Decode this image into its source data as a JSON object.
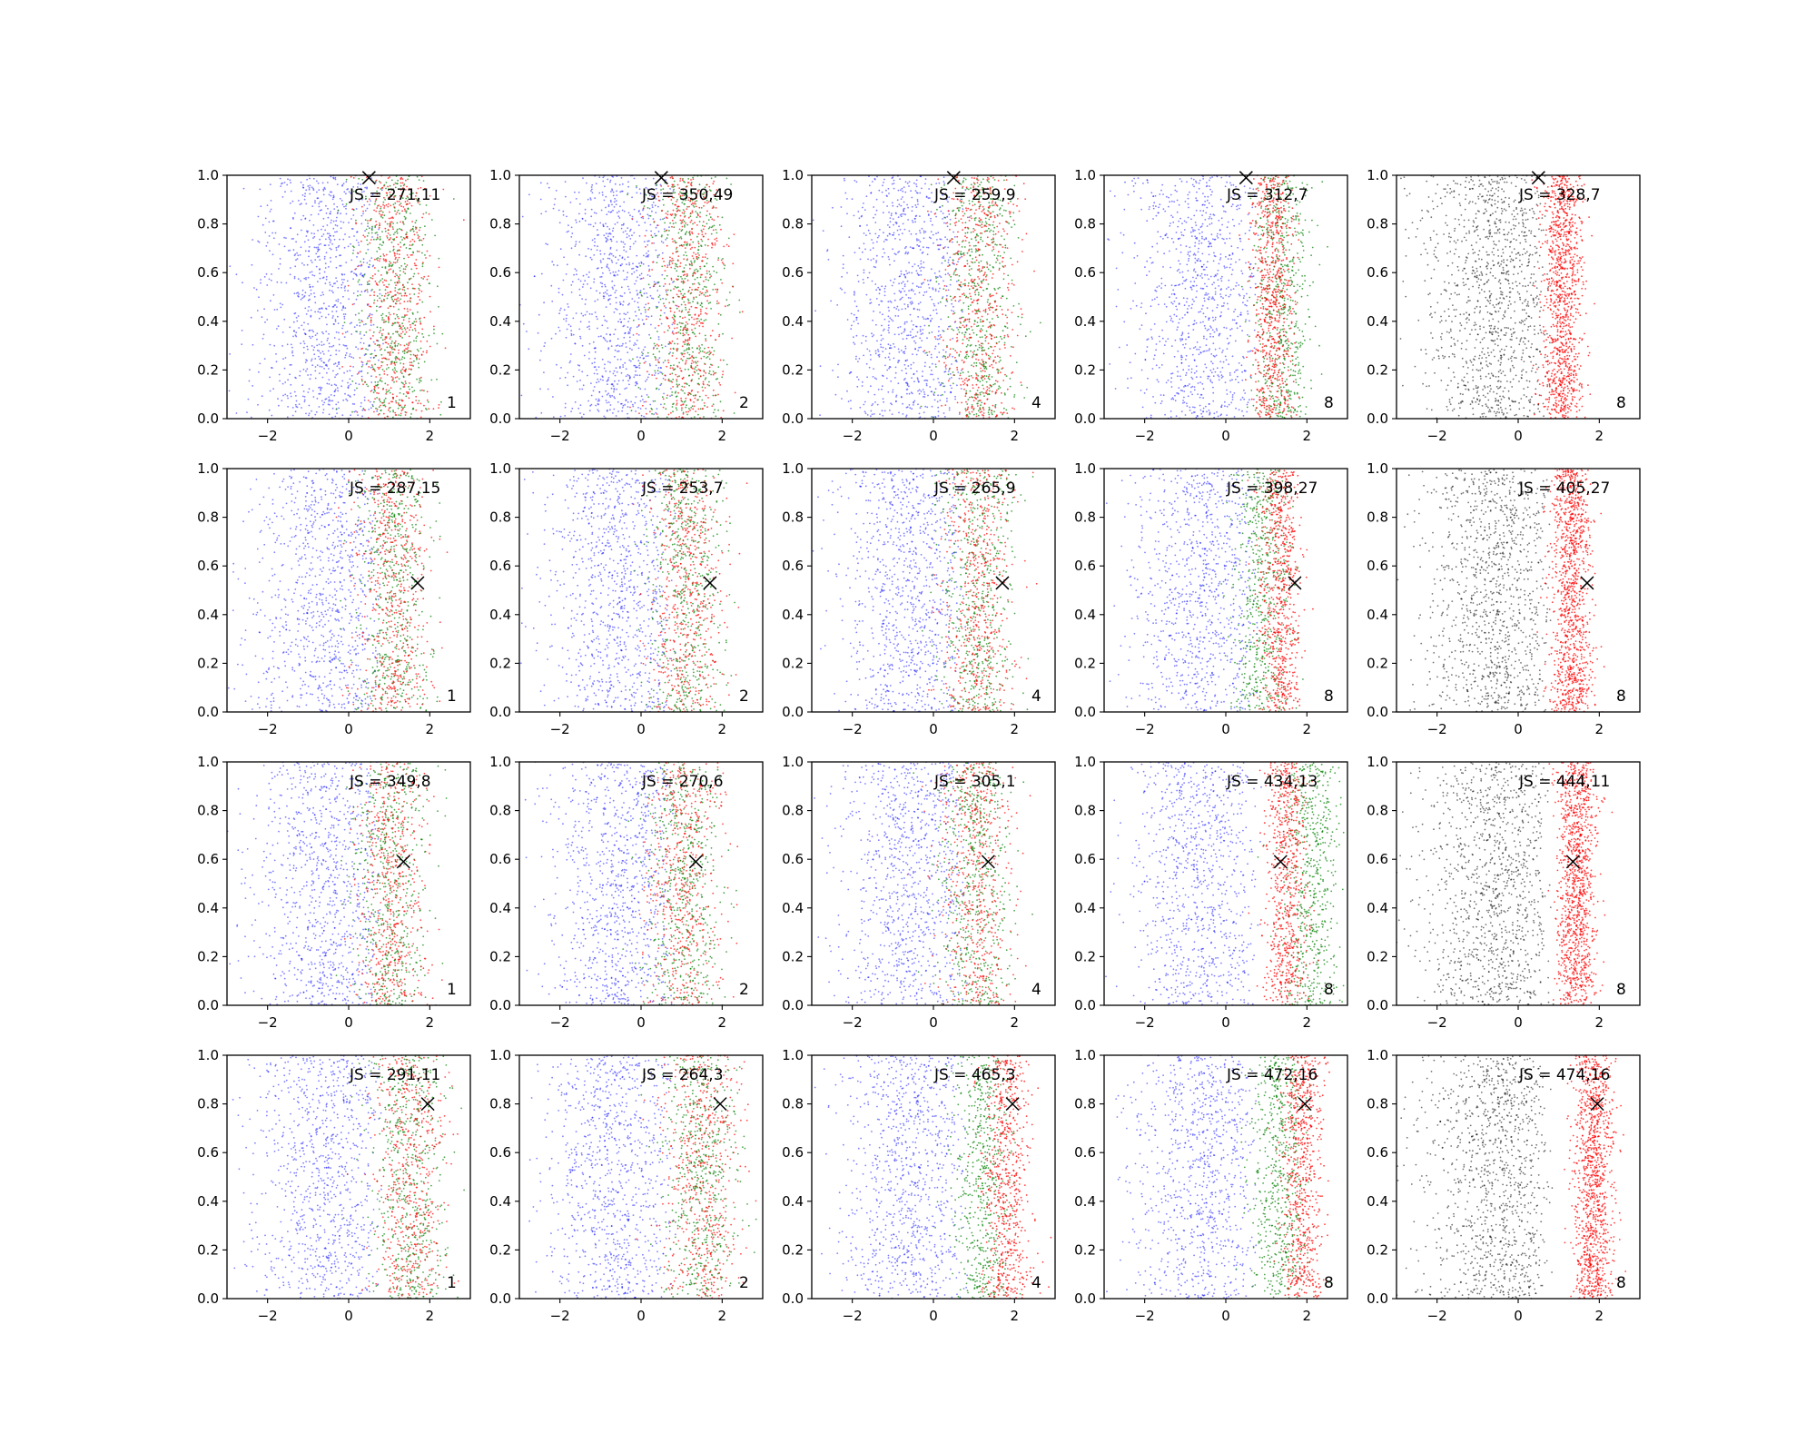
{
  "chart_data": {
    "type": "scatter",
    "layout": {
      "rows": 4,
      "cols": 5
    },
    "xlim": [
      -3,
      3
    ],
    "ylim": [
      0,
      1
    ],
    "xticks": [
      -2,
      0,
      2
    ],
    "yticks": [
      0.0,
      0.2,
      0.4,
      0.6,
      0.8,
      1.0
    ],
    "xtick_labels": [
      "−2",
      "0",
      "2"
    ],
    "ytick_labels": [
      "0.0",
      "0.2",
      "0.4",
      "0.6",
      "0.8",
      "1.0"
    ],
    "grid": false,
    "colors": {
      "left_cloud": "#0000ff",
      "right_a": "#ff0000",
      "right_b": "#008000",
      "fifth_col_left": "#000000",
      "marker": "#000000"
    },
    "rows": [
      {
        "marker": {
          "x": 0.5,
          "y": 0.99
        },
        "panels": [
          {
            "js_label": "JS = 271,11",
            "k": "1"
          },
          {
            "js_label": "JS = 350,49",
            "k": "2"
          },
          {
            "js_label": "JS = 259,9",
            "k": "4"
          },
          {
            "js_label": "JS = 312,7",
            "k": "8"
          },
          {
            "js_label": "JS = 328,7",
            "k": "8"
          }
        ]
      },
      {
        "marker": {
          "x": 1.7,
          "y": 0.53
        },
        "panels": [
          {
            "js_label": "JS = 287,15",
            "k": "1"
          },
          {
            "js_label": "JS = 253,7",
            "k": "2"
          },
          {
            "js_label": "JS = 265,9",
            "k": "4"
          },
          {
            "js_label": "JS = 398,27",
            "k": "8"
          },
          {
            "js_label": "JS = 405,27",
            "k": "8"
          }
        ]
      },
      {
        "marker": {
          "x": 1.35,
          "y": 0.59
        },
        "panels": [
          {
            "js_label": "JS = 349,8",
            "k": "1"
          },
          {
            "js_label": "JS = 270,6",
            "k": "2"
          },
          {
            "js_label": "JS = 305,1",
            "k": "4"
          },
          {
            "js_label": "JS = 434,13",
            "k": "8"
          },
          {
            "js_label": "JS = 444,11",
            "k": "8"
          }
        ]
      },
      {
        "marker": {
          "x": 1.95,
          "y": 0.8
        },
        "panels": [
          {
            "js_label": "JS = 291,11",
            "k": "1"
          },
          {
            "js_label": "JS = 264,3",
            "k": "2"
          },
          {
            "js_label": "JS = 465,3",
            "k": "4"
          },
          {
            "js_label": "JS = 472,16",
            "k": "8"
          },
          {
            "js_label": "JS = 474,16",
            "k": "8"
          }
        ]
      }
    ]
  }
}
